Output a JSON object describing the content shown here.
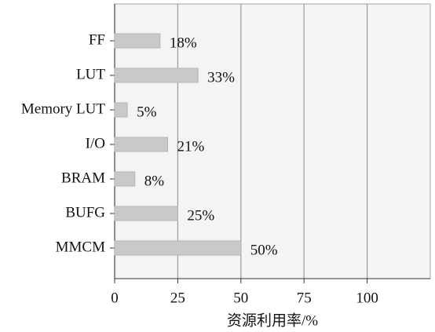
{
  "chart_data": {
    "type": "bar",
    "orientation": "horizontal",
    "categories": [
      "FF",
      "LUT",
      "Memory LUT",
      "I/O",
      "BRAM",
      "BUFG",
      "MMCM"
    ],
    "values": [
      18,
      33,
      5,
      21,
      8,
      25,
      50
    ],
    "value_labels": [
      "18%",
      "33%",
      "5%",
      "21%",
      "8%",
      "25%",
      "50%"
    ],
    "color": "#c9c9c9",
    "xlabel": "资源利用率/%",
    "xlim": [
      0,
      125
    ],
    "xticks": [
      0,
      25,
      50,
      75,
      100
    ],
    "grid": true
  }
}
